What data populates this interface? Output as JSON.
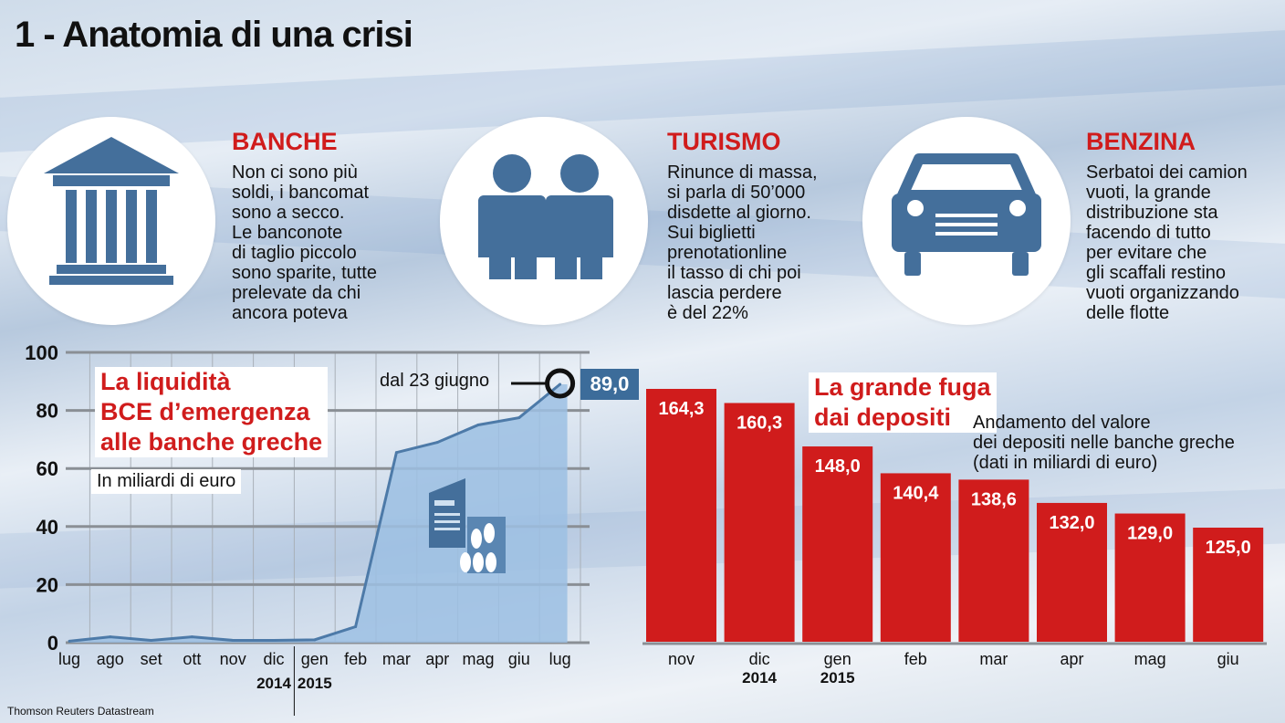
{
  "title": "1 - Anatomia di una crisi",
  "colors": {
    "blue": "#3c6c9a",
    "icon_blue": "#446f9b",
    "red": "#d01c1c",
    "grid": "#8a8f95",
    "area": "#9cc0e3"
  },
  "blocks": [
    {
      "icon": "bank-icon",
      "title": "BANCHE",
      "lines": [
        "Non ci sono più",
        "soldi, i bancomat",
        "sono a secco.",
        "Le banconote",
        "di taglio piccolo",
        "sono sparite, tutte",
        "prelevate da chi",
        "ancora poteva"
      ]
    },
    {
      "icon": "people-icon",
      "title": "TURISMO",
      "lines": [
        "Rinunce di massa,",
        "si parla di 50’000",
        "disdette al giorno.",
        "Sui biglietti",
        "prenotationline",
        "il tasso di chi poi",
        "lascia perdere",
        "è del 22%"
      ]
    },
    {
      "icon": "car-icon",
      "title": "BENZINA",
      "lines": [
        "Serbatoi dei camion",
        "vuoti, la grande",
        "distribuzione sta",
        "facendo di tutto",
        "per evitare che",
        "gli scaffali restino",
        "vuoti organizzando",
        "delle flotte"
      ]
    }
  ],
  "source": "Thomson Reuters Datastream",
  "chart_data": [
    {
      "type": "area",
      "title": "La liquidità BCE d’emergenza alle banche greche",
      "title_lines": [
        "La liquidità",
        "BCE d’emergenza",
        "alle banche greche"
      ],
      "subtitle": "In miliardi di euro",
      "x": [
        "lug",
        "ago",
        "set",
        "ott",
        "nov",
        "dic",
        "gen",
        "feb",
        "mar",
        "apr",
        "mag",
        "giu",
        "lug"
      ],
      "year_labels": [
        {
          "after": "dic",
          "label": "2014"
        },
        {
          "after": "gen",
          "label": "2015"
        }
      ],
      "values": [
        0.5,
        2.0,
        0.8,
        2.0,
        0.8,
        0.8,
        1.0,
        5.5,
        65.5,
        69.0,
        75.0,
        77.5,
        89.0
      ],
      "ylim": [
        0,
        100
      ],
      "yticks": [
        0,
        20,
        40,
        60,
        80,
        100
      ],
      "grid": true,
      "annotation": {
        "text": "dal 23 giugno",
        "value": "89,0"
      }
    },
    {
      "type": "bar",
      "title": "La grande fuga dai depositi",
      "title_lines": [
        "La grande fuga",
        "dai depositi"
      ],
      "subtitle_lines": [
        "Andamento del valore",
        "dei depositi nelle banche greche",
        "(dati in miliardi di euro)"
      ],
      "categories": [
        "nov",
        "dic",
        "gen",
        "feb",
        "mar",
        "apr",
        "mag",
        "giu"
      ],
      "year_labels": [
        {
          "category": "dic",
          "label": "2014"
        },
        {
          "category": "gen",
          "label": "2015"
        }
      ],
      "values": [
        164.3,
        160.3,
        148.0,
        140.4,
        138.6,
        132.0,
        129.0,
        125.0
      ],
      "value_labels": [
        "164,3",
        "160,3",
        "148,0",
        "140,4",
        "138,6",
        "132,0",
        "129,0",
        "125,0"
      ],
      "color": "#d01c1c"
    }
  ]
}
